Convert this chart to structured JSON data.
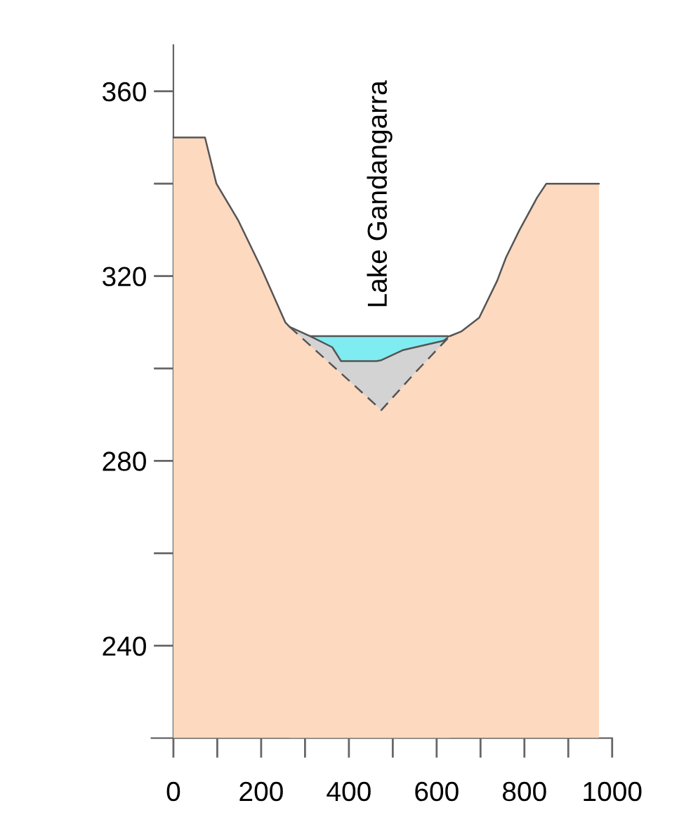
{
  "chart_data": {
    "type": "area",
    "annotations": [
      "Lake Gandangarra"
    ],
    "series": [
      {
        "color": "#7fecf2",
        "x": [
          311,
          362,
          382,
          463,
          474,
          524,
          616,
          626
        ],
        "values": [
          307,
          307,
          307,
          307,
          307,
          307,
          307,
          307
        ]
      },
      {
        "color": "#d3d3d3",
        "x": [
          265,
          311,
          362,
          382,
          463,
          474,
          524,
          616,
          630
        ],
        "values": [
          309,
          307,
          304.6,
          301.6,
          301.6,
          301.8,
          304,
          306,
          307
        ]
      },
      {
        "color": "#fdd9bf",
        "line_style": "dashed",
        "x": [
          0,
          72,
          98,
          148,
          199,
          255,
          265,
          370,
          474,
          550,
          630,
          656,
          697,
          738,
          758,
          789,
          829,
          850,
          970
        ],
        "values": [
          350,
          350,
          340,
          332,
          322,
          310,
          309,
          300,
          291,
          299,
          307,
          308,
          311,
          319,
          324,
          330,
          337,
          340,
          340
        ]
      }
    ],
    "xlim": [
      -50,
      1000
    ],
    "ylim": [
      220,
      370
    ],
    "xticks": [
      0,
      {
        "value": 100,
        "label": null
      },
      200,
      {
        "value": 300,
        "label": null
      },
      400,
      {
        "value": 500,
        "label": null
      },
      600,
      {
        "value": 700,
        "label": null
      },
      800,
      {
        "value": 900,
        "label": null
      },
      1000
    ],
    "yticks": [
      240,
      {
        "value": 260,
        "label": null
      },
      280,
      {
        "value": 300,
        "label": null
      },
      320,
      {
        "value": 340,
        "label": null
      },
      360
    ],
    "grid": false,
    "legend": false
  }
}
